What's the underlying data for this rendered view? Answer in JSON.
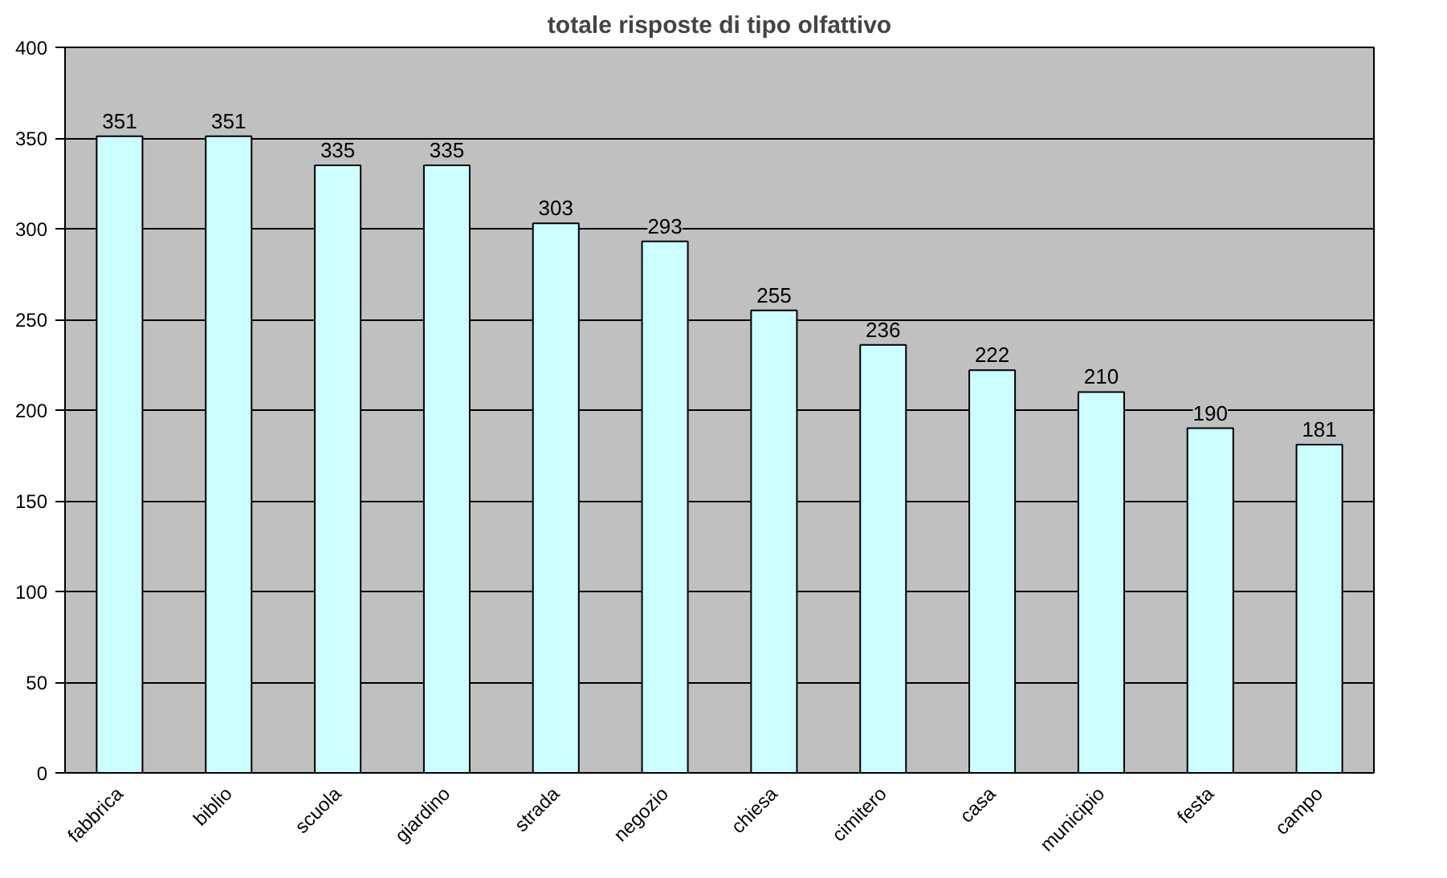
{
  "chart_data": {
    "type": "bar",
    "title": "totale risposte di tipo olfattivo",
    "categories": [
      "fabbrica",
      "biblio",
      "scuola",
      "giardino",
      "strada",
      "negozio",
      "chiesa",
      "cimitero",
      "casa",
      "municipio",
      "festa",
      "campo"
    ],
    "values": [
      351,
      351,
      335,
      335,
      303,
      293,
      255,
      236,
      222,
      210,
      190,
      181
    ],
    "color": "#ccffff",
    "ylim": [
      0,
      400
    ],
    "yticks": [
      0,
      50,
      100,
      150,
      200,
      250,
      300,
      350,
      400
    ],
    "grid": "y",
    "data_labels": true
  }
}
